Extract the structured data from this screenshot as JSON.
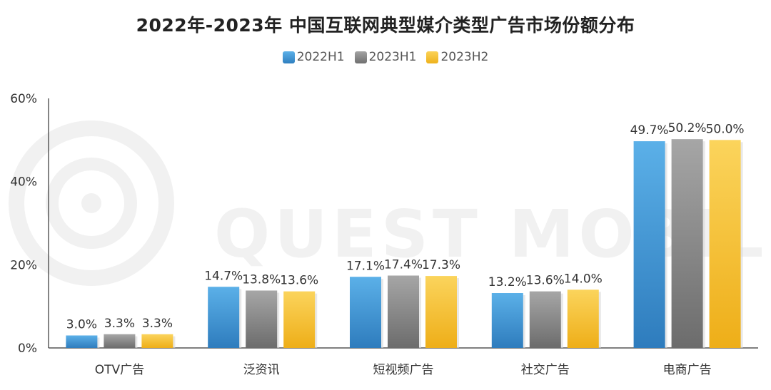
{
  "chart_data": {
    "type": "bar",
    "title": "2022年-2023年 中国互联网典型媒介类型广告市场份额分布",
    "categories": [
      "OTV广告",
      "泛资讯",
      "短视频广告",
      "社交广告",
      "电商广告"
    ],
    "series": [
      {
        "name": "2022H1",
        "values": [
          3.0,
          14.7,
          17.1,
          13.2,
          49.7
        ],
        "labels": [
          "3.0%",
          "14.7%",
          "17.1%",
          "13.2%",
          "49.7%"
        ],
        "color": "#3a8fd0"
      },
      {
        "name": "2023H1",
        "values": [
          3.3,
          13.8,
          17.4,
          13.6,
          50.2
        ],
        "labels": [
          "3.3%",
          "13.8%",
          "17.4%",
          "13.6%",
          "50.2%"
        ],
        "color": "#8a8a8a"
      },
      {
        "name": "2023H2",
        "values": [
          3.3,
          13.6,
          17.3,
          14.0,
          50.0
        ],
        "labels": [
          "3.3%",
          "13.6%",
          "17.3%",
          "14.0%",
          "50.0%"
        ],
        "color": "#f3bd2c"
      }
    ],
    "yticks": [
      "0%",
      "20%",
      "40%",
      "60%"
    ],
    "ylim": [
      0,
      60
    ],
    "grid": false,
    "legend": "top-center"
  },
  "watermark": "QUEST MOBILE"
}
